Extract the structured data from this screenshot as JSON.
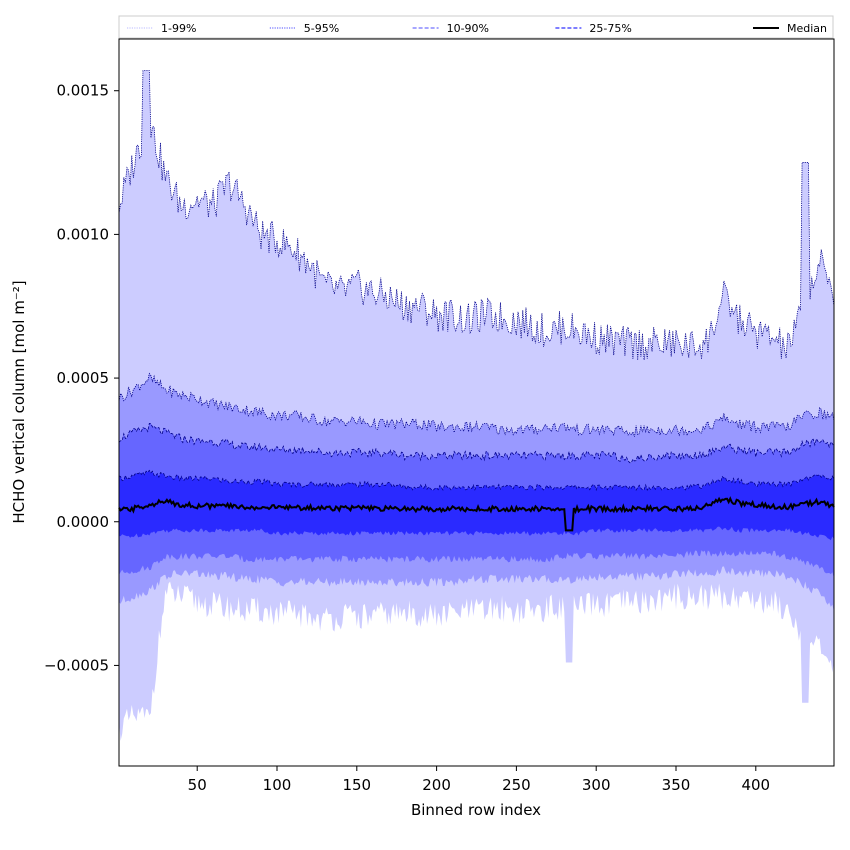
{
  "chart_data": {
    "type": "area",
    "xlabel": "Binned row index",
    "ylabel": "HCHO vertical column [mol m⁻²]",
    "xlim": [
      1,
      449
    ],
    "ylim": [
      -0.00085,
      0.00168
    ],
    "x_ticks": [
      50,
      100,
      150,
      200,
      250,
      300,
      350,
      400
    ],
    "y_ticks": [
      {
        "value": 0.0015,
        "label": "0.0015"
      },
      {
        "value": 0.001,
        "label": "0.0010"
      },
      {
        "value": 0.0005,
        "label": "0.0005"
      },
      {
        "value": 0.0,
        "label": "0.0000"
      },
      {
        "value": -0.0005,
        "label": "−0.0005"
      }
    ],
    "legend": {
      "placement": "top",
      "entries": [
        {
          "label": "1-99%",
          "style": "dotted",
          "color": "#c8c8ff"
        },
        {
          "label": "5-95%",
          "style": "dotted",
          "color": "#7070ff"
        },
        {
          "label": "10-90%",
          "style": "dashed",
          "color": "#7070ff"
        },
        {
          "label": "25-75%",
          "style": "dashed",
          "color": "#3030ff"
        },
        {
          "label": "Median",
          "style": "solid",
          "color": "#000000"
        }
      ]
    },
    "band_colors": {
      "p1_p99": "#ccccff",
      "p5_p95": "#9999ff",
      "p10_p90": "#6666ff",
      "p25_p75": "#2a2aff",
      "median": "#000000",
      "upper_edge": "#00008b"
    },
    "x_nodes": [
      1,
      10,
      20,
      30,
      40,
      50,
      60,
      70,
      80,
      90,
      100,
      110,
      120,
      130,
      140,
      150,
      160,
      170,
      180,
      190,
      200,
      210,
      220,
      230,
      240,
      250,
      260,
      270,
      280,
      290,
      300,
      310,
      320,
      330,
      340,
      350,
      360,
      370,
      380,
      390,
      400,
      410,
      420,
      430,
      440,
      449
    ],
    "series": [
      {
        "name": "1-99%",
        "kind": "band",
        "upper": [
          0.0011,
          0.00125,
          0.0014,
          0.0012,
          0.0011,
          0.00112,
          0.0011,
          0.00118,
          0.0011,
          0.001,
          0.00098,
          0.00095,
          0.0009,
          0.00082,
          0.0008,
          0.00082,
          0.0008,
          0.00078,
          0.00075,
          0.00075,
          0.00072,
          0.00072,
          0.0007,
          0.00072,
          0.00071,
          0.0007,
          0.00068,
          0.00066,
          0.00068,
          0.00066,
          0.00064,
          0.00063,
          0.00062,
          0.00062,
          0.00062,
          0.00062,
          0.00061,
          0.00063,
          0.00078,
          0.0007,
          0.00066,
          0.00064,
          0.0006,
          0.00075,
          0.0009,
          0.0008
        ],
        "lower": [
          -0.00072,
          -0.00068,
          -0.00068,
          -0.00025,
          -0.00026,
          -0.00028,
          -0.00029,
          -0.0003,
          -0.00031,
          -0.00031,
          -0.00032,
          -0.00032,
          -0.00033,
          -0.00034,
          -0.00033,
          -0.00033,
          -0.00033,
          -0.00032,
          -0.00032,
          -0.00032,
          -0.00033,
          -0.00032,
          -0.00031,
          -0.00031,
          -0.0003,
          -0.00031,
          -0.00031,
          -0.0003,
          -0.0003,
          -0.0003,
          -0.00029,
          -0.00029,
          -0.00028,
          -0.00028,
          -0.00027,
          -0.00026,
          -0.00026,
          -0.00026,
          -0.00026,
          -0.00026,
          -0.00027,
          -0.00028,
          -0.0003,
          -0.0004,
          -0.00045,
          -0.00052
        ]
      },
      {
        "name": "5-95%",
        "kind": "band",
        "upper": [
          0.00043,
          0.00046,
          0.0005,
          0.00046,
          0.00044,
          0.00043,
          0.00041,
          0.0004,
          0.00039,
          0.00038,
          0.00037,
          0.00037,
          0.00036,
          0.00035,
          0.00035,
          0.00035,
          0.00034,
          0.00034,
          0.00034,
          0.00034,
          0.00033,
          0.00033,
          0.00033,
          0.00033,
          0.00032,
          0.00032,
          0.00032,
          0.00033,
          0.00033,
          0.00032,
          0.00032,
          0.00032,
          0.00031,
          0.00032,
          0.00032,
          0.00032,
          0.00032,
          0.00033,
          0.00036,
          0.00034,
          0.00033,
          0.00033,
          0.00033,
          0.00037,
          0.00038,
          0.00036
        ],
        "lower": [
          -0.00028,
          -0.00026,
          -0.00024,
          -0.00019,
          -0.00018,
          -0.00018,
          -0.00019,
          -0.00019,
          -0.0002,
          -0.0002,
          -0.00021,
          -0.00021,
          -0.00021,
          -0.00021,
          -0.00021,
          -0.00021,
          -0.00021,
          -0.00021,
          -0.00021,
          -0.00021,
          -0.00021,
          -0.00021,
          -0.0002,
          -0.0002,
          -0.0002,
          -0.0002,
          -0.0002,
          -0.0002,
          -0.0002,
          -0.0002,
          -0.00019,
          -0.00019,
          -0.00019,
          -0.00019,
          -0.00019,
          -0.00018,
          -0.00018,
          -0.00018,
          -0.00017,
          -0.00018,
          -0.00018,
          -0.00018,
          -0.00019,
          -0.00022,
          -0.00025,
          -0.0003
        ]
      },
      {
        "name": "10-90%",
        "kind": "band",
        "upper": [
          0.00029,
          0.00031,
          0.00033,
          0.00031,
          0.00029,
          0.00028,
          0.00028,
          0.00027,
          0.00026,
          0.00026,
          0.00025,
          0.00025,
          0.00025,
          0.00024,
          0.00024,
          0.00024,
          0.00024,
          0.00024,
          0.00023,
          0.00023,
          0.00023,
          0.00023,
          0.00023,
          0.00023,
          0.00023,
          0.00023,
          0.00023,
          0.00023,
          0.00023,
          0.00023,
          0.00023,
          0.00023,
          0.00022,
          0.00022,
          0.00023,
          0.00023,
          0.00023,
          0.00024,
          0.00026,
          0.00025,
          0.00024,
          0.00024,
          0.00024,
          0.00027,
          0.00028,
          0.00027
        ],
        "lower": [
          -0.00018,
          -0.00017,
          -0.00016,
          -0.00012,
          -0.00012,
          -0.00012,
          -0.00012,
          -0.00012,
          -0.00013,
          -0.00013,
          -0.00013,
          -0.00013,
          -0.00013,
          -0.00013,
          -0.00013,
          -0.00013,
          -0.00013,
          -0.00013,
          -0.00013,
          -0.00013,
          -0.00013,
          -0.00013,
          -0.00013,
          -0.00013,
          -0.00013,
          -0.00013,
          -0.00013,
          -0.00013,
          -0.00012,
          -0.00012,
          -0.00012,
          -0.00012,
          -0.00012,
          -0.00012,
          -0.00012,
          -0.00012,
          -0.00011,
          -0.00011,
          -0.00011,
          -0.00011,
          -0.00011,
          -0.00011,
          -0.00012,
          -0.00014,
          -0.00016,
          -0.00019
        ]
      },
      {
        "name": "25-75%",
        "kind": "band",
        "upper": [
          0.00015,
          0.00016,
          0.00017,
          0.00016,
          0.00015,
          0.00015,
          0.00015,
          0.00014,
          0.00014,
          0.00014,
          0.00013,
          0.00013,
          0.00013,
          0.00013,
          0.00013,
          0.00013,
          0.00013,
          0.00013,
          0.00012,
          0.00012,
          0.00012,
          0.00012,
          0.00012,
          0.00012,
          0.00012,
          0.00012,
          0.00012,
          0.00012,
          0.00012,
          0.00012,
          0.00012,
          0.00012,
          0.00012,
          0.00012,
          0.00012,
          0.00012,
          0.00012,
          0.00013,
          0.00015,
          0.00014,
          0.00013,
          0.00013,
          0.00013,
          0.00015,
          0.00016,
          0.00015
        ],
        "lower": [
          -5e-05,
          -5e-05,
          -4e-05,
          -3e-05,
          -3e-05,
          -3e-05,
          -3e-05,
          -3e-05,
          -3e-05,
          -3e-05,
          -4e-05,
          -4e-05,
          -4e-05,
          -4e-05,
          -4e-05,
          -4e-05,
          -4e-05,
          -4e-05,
          -4e-05,
          -4e-05,
          -4e-05,
          -4e-05,
          -4e-05,
          -4e-05,
          -4e-05,
          -4e-05,
          -4e-05,
          -4e-05,
          -4e-05,
          -4e-05,
          -3e-05,
          -3e-05,
          -3e-05,
          -3e-05,
          -3e-05,
          -3e-05,
          -3e-05,
          -3e-05,
          -2e-05,
          -3e-05,
          -3e-05,
          -3e-05,
          -3e-05,
          -4e-05,
          -5e-05,
          -6e-05
        ]
      },
      {
        "name": "Median",
        "kind": "line",
        "values": [
          4e-05,
          4.5e-05,
          6e-05,
          7e-05,
          6e-05,
          5.5e-05,
          5.5e-05,
          5.5e-05,
          5e-05,
          5e-05,
          5e-05,
          5e-05,
          4.8e-05,
          4.8e-05,
          4.8e-05,
          4.8e-05,
          4.5e-05,
          4.5e-05,
          4.5e-05,
          4.5e-05,
          4.5e-05,
          4.5e-05,
          4.5e-05,
          4.5e-05,
          4.5e-05,
          4.5e-05,
          4.5e-05,
          4.5e-05,
          4e-05,
          4.5e-05,
          4.5e-05,
          4.5e-05,
          4.5e-05,
          4.5e-05,
          4.5e-05,
          4.5e-05,
          4.5e-05,
          5.5e-05,
          8e-05,
          6.5e-05,
          6e-05,
          5.5e-05,
          5e-05,
          6e-05,
          7e-05,
          5e-05
        ]
      }
    ],
    "annotations": [
      {
        "x": 18,
        "upper_peak": 0.00157
      },
      {
        "x": 283,
        "median_dip": -3e-05,
        "lower_dip": -0.00049
      },
      {
        "x": 431,
        "upper_peak": 0.00125,
        "lower_dip": -0.00063
      }
    ]
  }
}
